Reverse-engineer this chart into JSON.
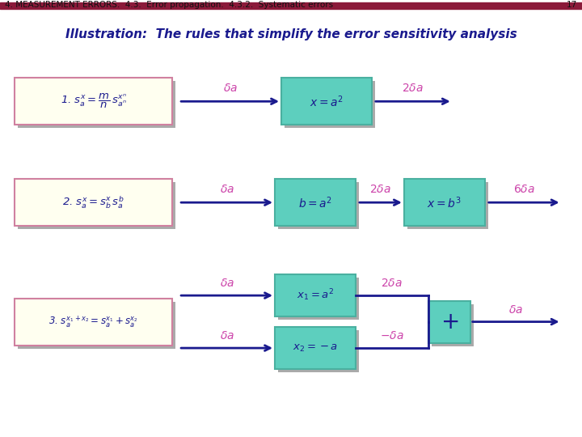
{
  "title_header": "4. MEASUREMENT ERRORS.  4.3.  Error propagation.  4.3.2.  Systematic errors",
  "page_num": "17",
  "header_bar_color": "#8B1A3A",
  "header_text_color": "#222222",
  "bg_color": "#ffffff",
  "subtitle": "Illustration:  The rules that simplify the error sensitivity analysis",
  "subtitle_color": "#1a1a8e",
  "box_face_color": "#fffff0",
  "box_edge_color": "#d080a0",
  "cyan_box_color": "#5dcfbe",
  "cyan_box_edge_color": "#4ab0a0",
  "shadow_color": "#aaaaaa",
  "arrow_color": "#1a1a8e",
  "delta_color": "#cc44aa",
  "rule1_formula": "1. $s^x_a = \\dfrac{m}{n}\\,s^{x^n}_{a^n}$",
  "rule1_box1": "$x = a^2$",
  "rule1_delta_in": "$\\delta a$",
  "rule1_delta_out": "$2\\delta a$",
  "rule2_formula": "2. $s^x_a = s^x_b\\, s^b_a$",
  "rule2_box1": "$b = a^2$",
  "rule2_box2": "$x = b^3$",
  "rule2_delta_in": "$\\delta a$",
  "rule2_delta_mid": "$2\\delta a$",
  "rule2_delta_out": "$6\\delta a$",
  "rule3_formula": "3. $s^{x_1+x_2}_a = s^{x_1}_a + s^{x_2}_a$",
  "rule3_box1": "$x_1 = a^2$",
  "rule3_box2": "$x_2 = -a$",
  "rule3_delta_in1": "$\\delta a$",
  "rule3_delta_in2": "$\\delta a$",
  "rule3_delta_out1": "$2\\delta a$",
  "rule3_delta_out2": "$-\\delta a$",
  "rule3_delta_final": "$\\delta a$"
}
